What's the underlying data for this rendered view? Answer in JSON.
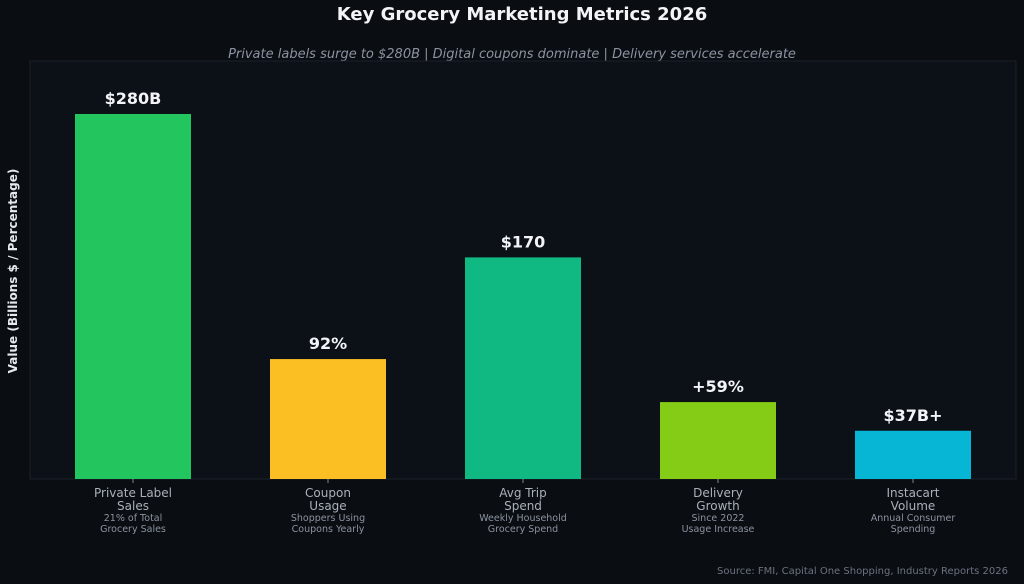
{
  "chart_data": {
    "type": "bar",
    "title": "Key Grocery Marketing Metrics 2026",
    "subtitle": "Private labels surge to $280B | Digital coupons dominate | Delivery services accelerate",
    "xlabel": "",
    "ylabel": "Value (Billions $ / Percentage)",
    "ylim": [
      0,
      320
    ],
    "grid": false,
    "categories": [
      "Private Label\nSales",
      "Coupon\nUsage",
      "Avg Trip\nSpend",
      "Delivery\nGrowth",
      "Instacart\nVolume"
    ],
    "sublabels": [
      "21% of Total\nGrocery Sales",
      "Shoppers Using\nCoupons Yearly",
      "Weekly Household\nGrocery Spend",
      "Since 2022\nUsage Increase",
      "Annual Consumer\nSpending"
    ],
    "values": [
      280,
      92,
      170,
      59,
      37
    ],
    "value_labels": [
      "$280B",
      "92%",
      "$170",
      "+59%",
      "$37B+"
    ],
    "colors": [
      "#22c55e",
      "#fbbf24",
      "#10b981",
      "#84cc16",
      "#06b6d4"
    ],
    "source": "Source: FMI, Capital One Shopping, Industry Reports 2026"
  }
}
